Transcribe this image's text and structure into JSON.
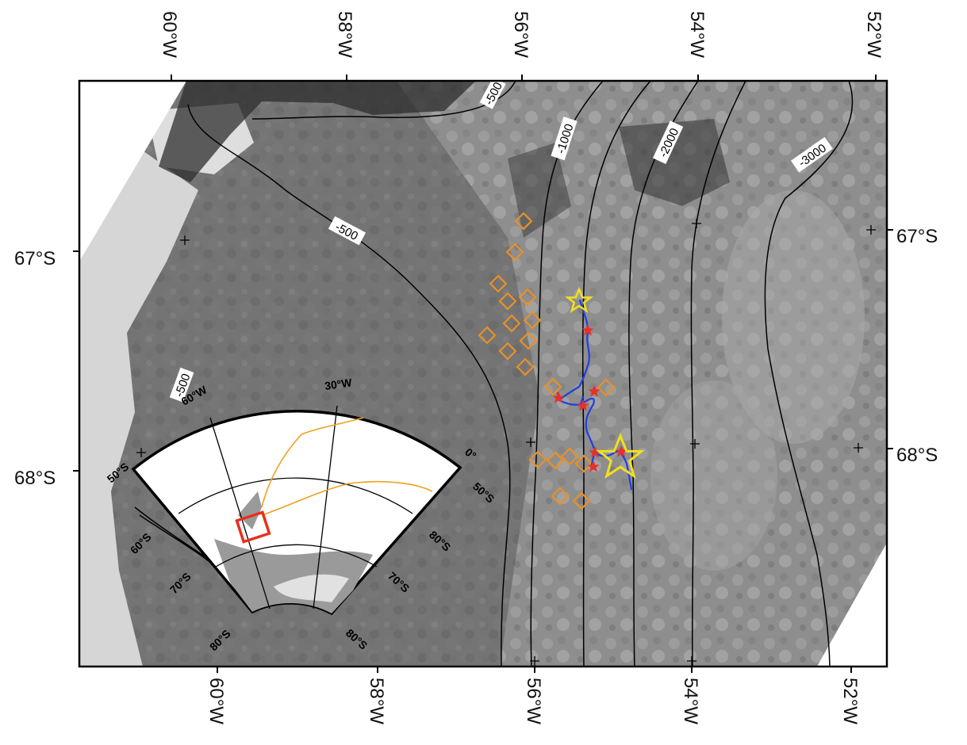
{
  "map": {
    "top_axis_labels": [
      "60°W",
      "58°W",
      "56°W",
      "54°W",
      "52°W"
    ],
    "bottom_axis_labels": [
      "60°W",
      "58°W",
      "56°W",
      "54°W",
      "52°W"
    ],
    "left_axis_labels": [
      "67°S",
      "68°S"
    ],
    "right_axis_labels": [
      "67°S",
      "68°S"
    ],
    "contour_labels": [
      "-500",
      "-500",
      "-500",
      "-1000",
      "-2000",
      "-3000"
    ],
    "colors": {
      "contour": "#000000",
      "drift_track": "#1f3fe0",
      "station_marker": "#e8302a",
      "deployment_marker": "#f0e020",
      "diamond_marker": "#e8902a",
      "study_area_box": "#e8301a",
      "inset_track": "#f0a020",
      "sea_ice_dark": "#6d6d6d",
      "sea_ice_light": "#9a9a9a",
      "ice_shelf": "#d6d6d6"
    },
    "inset": {
      "labels": [
        "30°W",
        "60°W",
        "0°",
        "50°S",
        "60°S",
        "70°S",
        "80°S",
        "50°S",
        "80°S",
        "70°S",
        "80°S"
      ]
    }
  }
}
